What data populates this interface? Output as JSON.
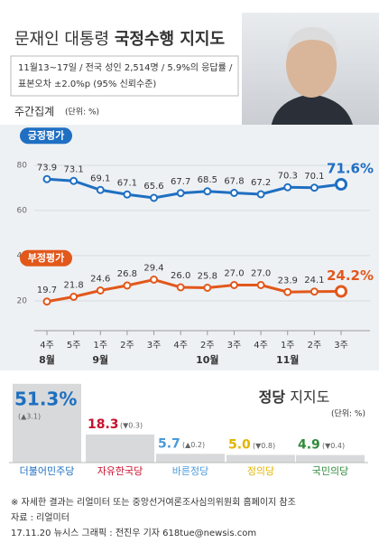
{
  "header": {
    "title": "문재인 대통령",
    "title_bold": "국정수행 지지도",
    "subtitle_lines": [
      "11월13~17일 / 전국 성인 2,514명 / 5.9%의 응답률 /",
      "표본오차 ±2.0%p (95% 신뢰수준)"
    ]
  },
  "chart_data": [
    {
      "type": "line",
      "title": "주간집계",
      "unit": "(단위: %)",
      "categories": [
        "4주",
        "5주",
        "1주",
        "2주",
        "3주",
        "4주",
        "2주",
        "3주",
        "4주",
        "1주",
        "2주",
        "3주"
      ],
      "month_labels": [
        "8월",
        null,
        "9월",
        null,
        null,
        null,
        "10월",
        null,
        null,
        "11월",
        null,
        null
      ],
      "series": [
        {
          "name": "긍정평가",
          "color": "#1f6fc2",
          "values": [
            73.9,
            73.1,
            69.1,
            67.1,
            65.6,
            67.7,
            68.5,
            67.8,
            67.2,
            70.3,
            70.1,
            71.6
          ],
          "value_labels": [
            "73.9",
            "73.1",
            "69.1",
            "67.1",
            "65.6",
            "67.7",
            "68.5",
            "67.8",
            "67.2",
            "70.3",
            "70.1",
            "71.6%"
          ]
        },
        {
          "name": "부정평가",
          "color": "#e2581b",
          "values": [
            19.7,
            21.8,
            24.6,
            26.8,
            29.4,
            26.0,
            25.8,
            27.0,
            27.0,
            23.9,
            24.1,
            24.2
          ],
          "value_labels": [
            "19.7",
            "21.8",
            "24.6",
            "26.8",
            "29.4",
            "26.0",
            "25.8",
            "27.0",
            "27.0",
            "23.9",
            "24.1",
            "24.2%"
          ]
        }
      ],
      "ylim": [
        10,
        90
      ],
      "yticks": [
        20,
        40,
        60,
        80
      ],
      "grid": true
    },
    {
      "type": "bar",
      "title_bold": "정당",
      "title": "지지도",
      "unit": "(단위: %)",
      "categories": [
        "더불어민주당",
        "자유한국당",
        "바른정당",
        "정의당",
        "국민의당"
      ],
      "values": [
        51.3,
        18.3,
        5.7,
        5.0,
        4.9
      ],
      "value_labels": [
        "51.3%",
        "18.3",
        "5.7",
        "5.0",
        "4.9"
      ],
      "changes": [
        "(▲3.1)",
        "(▼0.3)",
        "(▲0.2)",
        "(▼0.8)",
        "(▼0.4)"
      ],
      "colors": [
        "#1d6fc0",
        "#c8102e",
        "#4a9ad8",
        "#e3b400",
        "#2f8a3b"
      ],
      "bar_color": "#d8d9db"
    }
  ],
  "footer": {
    "note": "※ 자세한 결과는 리얼미터 또는 중앙선거여론조사심의위원회 홈페이지 참조",
    "source": "자료 : 리얼미터",
    "credit": "17.11.20 뉴시스 그래픽 : 전진우 기자 618tue@newsis.com"
  }
}
